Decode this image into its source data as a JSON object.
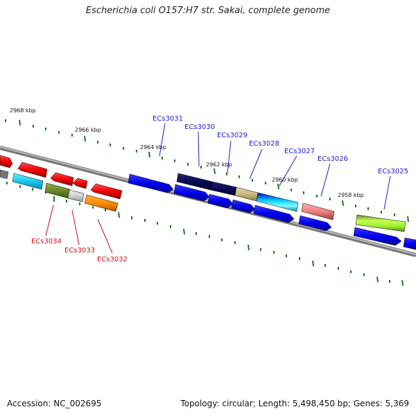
{
  "title": "Escherichia coli O157:H7 str. Sakai, complete genome",
  "footer": {
    "accession": "Accession: NC_002695",
    "topology": "Topology: circular; Length: 5,498,450 bp; Genes: 5,369"
  },
  "kbp_labels": [
    "2968 kbp",
    "2966 kbp",
    "2964 kbp",
    "2962 kbp",
    "2960 kbp",
    "2958 kbp"
  ],
  "gene_labels": [
    {
      "label": "ECs3031",
      "strand": "forward"
    },
    {
      "label": "ECs3030",
      "strand": "forward"
    },
    {
      "label": "ECs3029",
      "strand": "forward"
    },
    {
      "label": "ECs3028",
      "strand": "forward"
    },
    {
      "label": "ECs3027",
      "strand": "forward"
    },
    {
      "label": "ECs3026",
      "strand": "forward"
    },
    {
      "label": "ECs3025",
      "strand": "forward"
    },
    {
      "label": "ECs3034",
      "strand": "reverse"
    },
    {
      "label": "ECs3033",
      "strand": "reverse"
    },
    {
      "label": "ECs3032",
      "strand": "reverse"
    }
  ],
  "colors": {
    "forward_label": "#1a1acc",
    "reverse_label": "#cc1111",
    "tick": "#1a7a1a",
    "backbone": "#888888"
  }
}
